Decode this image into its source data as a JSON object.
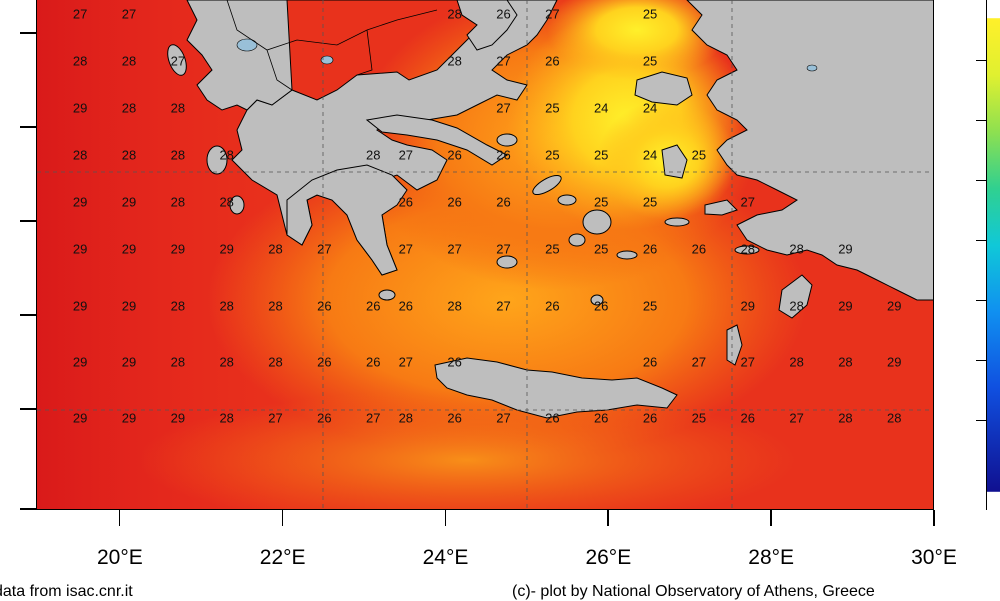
{
  "map": {
    "sst_labels": [
      {
        "lon": 19.5,
        "lat": 40.3,
        "value": "27"
      },
      {
        "lon": 20.1,
        "lat": 40.3,
        "value": "27"
      },
      {
        "lon": 24.1,
        "lat": 40.3,
        "value": "28"
      },
      {
        "lon": 24.7,
        "lat": 40.3,
        "value": "26"
      },
      {
        "lon": 25.3,
        "lat": 40.3,
        "value": "27"
      },
      {
        "lon": 26.5,
        "lat": 40.3,
        "value": "25"
      },
      {
        "lon": 19.5,
        "lat": 39.8,
        "value": "28"
      },
      {
        "lon": 20.1,
        "lat": 39.8,
        "value": "28"
      },
      {
        "lon": 20.7,
        "lat": 39.8,
        "value": "27"
      },
      {
        "lon": 24.1,
        "lat": 39.8,
        "value": "28"
      },
      {
        "lon": 24.7,
        "lat": 39.8,
        "value": "27"
      },
      {
        "lon": 25.3,
        "lat": 39.8,
        "value": "26"
      },
      {
        "lon": 26.5,
        "lat": 39.8,
        "value": "25"
      },
      {
        "lon": 19.5,
        "lat": 39.3,
        "value": "29"
      },
      {
        "lon": 20.1,
        "lat": 39.3,
        "value": "28"
      },
      {
        "lon": 20.7,
        "lat": 39.3,
        "value": "28"
      },
      {
        "lon": 24.7,
        "lat": 39.3,
        "value": "27"
      },
      {
        "lon": 25.3,
        "lat": 39.3,
        "value": "25"
      },
      {
        "lon": 25.9,
        "lat": 39.3,
        "value": "24"
      },
      {
        "lon": 26.5,
        "lat": 39.3,
        "value": "24"
      },
      {
        "lon": 19.5,
        "lat": 38.8,
        "value": "28"
      },
      {
        "lon": 20.1,
        "lat": 38.8,
        "value": "28"
      },
      {
        "lon": 20.7,
        "lat": 38.8,
        "value": "28"
      },
      {
        "lon": 21.3,
        "lat": 38.8,
        "value": "28"
      },
      {
        "lon": 23.1,
        "lat": 38.8,
        "value": "28"
      },
      {
        "lon": 23.5,
        "lat": 38.8,
        "value": "27"
      },
      {
        "lon": 24.1,
        "lat": 38.8,
        "value": "26"
      },
      {
        "lon": 24.7,
        "lat": 38.8,
        "value": "26"
      },
      {
        "lon": 25.3,
        "lat": 38.8,
        "value": "25"
      },
      {
        "lon": 25.9,
        "lat": 38.8,
        "value": "25"
      },
      {
        "lon": 26.5,
        "lat": 38.8,
        "value": "24"
      },
      {
        "lon": 27.1,
        "lat": 38.8,
        "value": "25"
      },
      {
        "lon": 19.5,
        "lat": 38.3,
        "value": "29"
      },
      {
        "lon": 20.1,
        "lat": 38.3,
        "value": "29"
      },
      {
        "lon": 20.7,
        "lat": 38.3,
        "value": "28"
      },
      {
        "lon": 21.3,
        "lat": 38.3,
        "value": "28"
      },
      {
        "lon": 23.5,
        "lat": 38.3,
        "value": "26"
      },
      {
        "lon": 24.1,
        "lat": 38.3,
        "value": "26"
      },
      {
        "lon": 24.7,
        "lat": 38.3,
        "value": "26"
      },
      {
        "lon": 25.9,
        "lat": 38.3,
        "value": "25"
      },
      {
        "lon": 26.5,
        "lat": 38.3,
        "value": "25"
      },
      {
        "lon": 27.7,
        "lat": 38.3,
        "value": "27"
      },
      {
        "lon": 19.5,
        "lat": 37.8,
        "value": "29"
      },
      {
        "lon": 20.1,
        "lat": 37.8,
        "value": "29"
      },
      {
        "lon": 20.7,
        "lat": 37.8,
        "value": "29"
      },
      {
        "lon": 21.3,
        "lat": 37.8,
        "value": "29"
      },
      {
        "lon": 21.9,
        "lat": 37.8,
        "value": "28"
      },
      {
        "lon": 22.5,
        "lat": 37.8,
        "value": "27"
      },
      {
        "lon": 23.5,
        "lat": 37.8,
        "value": "27"
      },
      {
        "lon": 24.1,
        "lat": 37.8,
        "value": "27"
      },
      {
        "lon": 24.7,
        "lat": 37.8,
        "value": "27"
      },
      {
        "lon": 25.3,
        "lat": 37.8,
        "value": "25"
      },
      {
        "lon": 25.9,
        "lat": 37.8,
        "value": "25"
      },
      {
        "lon": 26.5,
        "lat": 37.8,
        "value": "26"
      },
      {
        "lon": 27.1,
        "lat": 37.8,
        "value": "26"
      },
      {
        "lon": 27.7,
        "lat": 37.8,
        "value": "28"
      },
      {
        "lon": 28.3,
        "lat": 37.8,
        "value": "28"
      },
      {
        "lon": 28.9,
        "lat": 37.8,
        "value": "29"
      },
      {
        "lon": 19.5,
        "lat": 37.2,
        "value": "29"
      },
      {
        "lon": 20.1,
        "lat": 37.2,
        "value": "29"
      },
      {
        "lon": 20.7,
        "lat": 37.2,
        "value": "28"
      },
      {
        "lon": 21.3,
        "lat": 37.2,
        "value": "28"
      },
      {
        "lon": 21.9,
        "lat": 37.2,
        "value": "28"
      },
      {
        "lon": 22.5,
        "lat": 37.2,
        "value": "26"
      },
      {
        "lon": 23.1,
        "lat": 37.2,
        "value": "26"
      },
      {
        "lon": 23.5,
        "lat": 37.2,
        "value": "26"
      },
      {
        "lon": 24.1,
        "lat": 37.2,
        "value": "28"
      },
      {
        "lon": 24.7,
        "lat": 37.2,
        "value": "27"
      },
      {
        "lon": 25.3,
        "lat": 37.2,
        "value": "26"
      },
      {
        "lon": 25.9,
        "lat": 37.2,
        "value": "26"
      },
      {
        "lon": 26.5,
        "lat": 37.2,
        "value": "25"
      },
      {
        "lon": 27.7,
        "lat": 37.2,
        "value": "29"
      },
      {
        "lon": 28.3,
        "lat": 37.2,
        "value": "28"
      },
      {
        "lon": 28.9,
        "lat": 37.2,
        "value": "29"
      },
      {
        "lon": 29.5,
        "lat": 37.2,
        "value": "29"
      },
      {
        "lon": 19.5,
        "lat": 36.6,
        "value": "29"
      },
      {
        "lon": 20.1,
        "lat": 36.6,
        "value": "29"
      },
      {
        "lon": 20.7,
        "lat": 36.6,
        "value": "28"
      },
      {
        "lon": 21.3,
        "lat": 36.6,
        "value": "28"
      },
      {
        "lon": 21.9,
        "lat": 36.6,
        "value": "28"
      },
      {
        "lon": 22.5,
        "lat": 36.6,
        "value": "26"
      },
      {
        "lon": 23.1,
        "lat": 36.6,
        "value": "26"
      },
      {
        "lon": 23.5,
        "lat": 36.6,
        "value": "27"
      },
      {
        "lon": 24.1,
        "lat": 36.6,
        "value": "26"
      },
      {
        "lon": 26.5,
        "lat": 36.6,
        "value": "26"
      },
      {
        "lon": 27.1,
        "lat": 36.6,
        "value": "27"
      },
      {
        "lon": 27.7,
        "lat": 36.6,
        "value": "27"
      },
      {
        "lon": 28.3,
        "lat": 36.6,
        "value": "28"
      },
      {
        "lon": 28.9,
        "lat": 36.6,
        "value": "28"
      },
      {
        "lon": 29.5,
        "lat": 36.6,
        "value": "29"
      },
      {
        "lon": 19.5,
        "lat": 36.0,
        "value": "29"
      },
      {
        "lon": 20.1,
        "lat": 36.0,
        "value": "29"
      },
      {
        "lon": 20.7,
        "lat": 36.0,
        "value": "29"
      },
      {
        "lon": 21.3,
        "lat": 36.0,
        "value": "28"
      },
      {
        "lon": 21.9,
        "lat": 36.0,
        "value": "27"
      },
      {
        "lon": 22.5,
        "lat": 36.0,
        "value": "26"
      },
      {
        "lon": 23.1,
        "lat": 36.0,
        "value": "27"
      },
      {
        "lon": 23.5,
        "lat": 36.0,
        "value": "28"
      },
      {
        "lon": 24.1,
        "lat": 36.0,
        "value": "26"
      },
      {
        "lon": 24.7,
        "lat": 36.0,
        "value": "27"
      },
      {
        "lon": 25.3,
        "lat": 36.0,
        "value": "26"
      },
      {
        "lon": 25.9,
        "lat": 36.0,
        "value": "26"
      },
      {
        "lon": 26.5,
        "lat": 36.0,
        "value": "26"
      },
      {
        "lon": 27.1,
        "lat": 36.0,
        "value": "25"
      },
      {
        "lon": 27.7,
        "lat": 36.0,
        "value": "26"
      },
      {
        "lon": 28.3,
        "lat": 36.0,
        "value": "27"
      },
      {
        "lon": 28.9,
        "lat": 36.0,
        "value": "28"
      },
      {
        "lon": 29.5,
        "lat": 36.0,
        "value": "28"
      }
    ],
    "lon_labels": [
      "20°E",
      "22°E",
      "24°E",
      "26°E",
      "28°E",
      "30°E"
    ],
    "colors": {
      "land": "#bebebe",
      "sea_warm": "#e8231e",
      "sea_mid": "#f46a12",
      "sea_cool": "#ffb21a",
      "sea_coolest": "#fff02a"
    }
  },
  "credits": {
    "left": "data from isac.cnr.it",
    "right": "(c)- plot by National Observatory of Athens, Greece"
  }
}
